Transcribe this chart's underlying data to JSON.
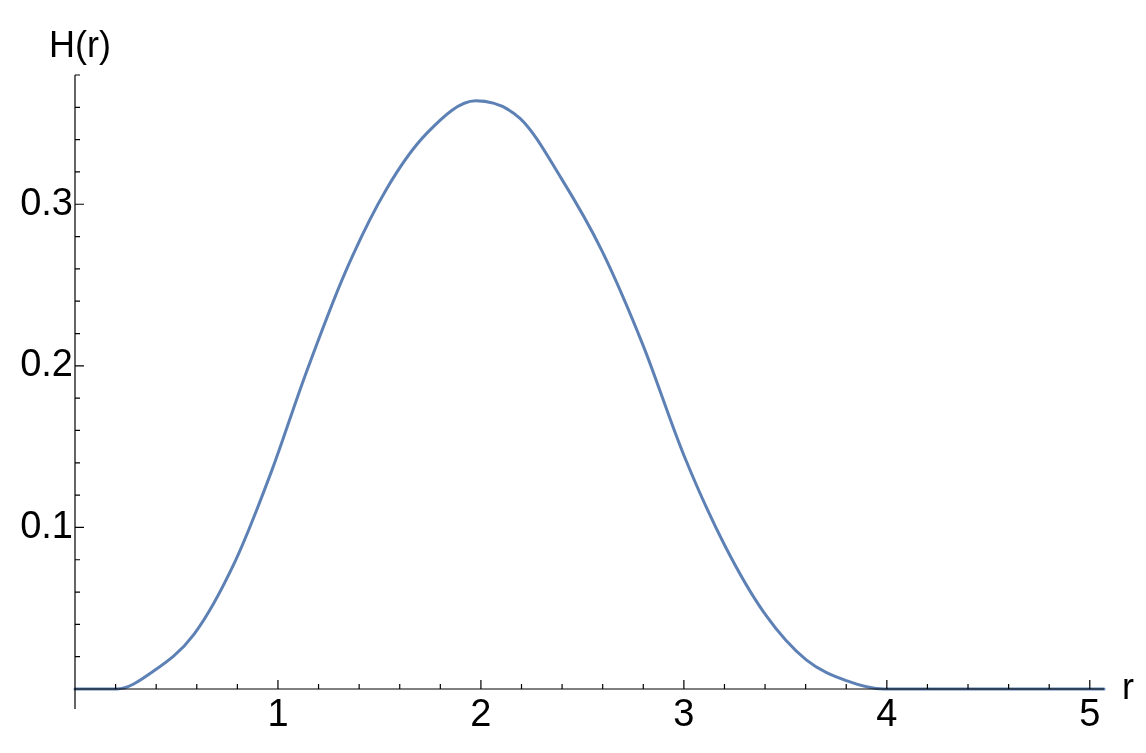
{
  "chart_data": {
    "type": "line",
    "xlabel": "r",
    "ylabel": "H(r)",
    "x": [
      0,
      0.1,
      0.205,
      0.386,
      0.587,
      0.789,
      0.969,
      1.131,
      1.332,
      1.533,
      1.734,
      1.975,
      2.194,
      2.396,
      2.597,
      2.798,
      2.999,
      3.201,
      3.402,
      3.603,
      3.804,
      3.985,
      4.5,
      5.07
    ],
    "series": [
      {
        "color": "#5e81b5",
        "values": [
          0,
          0,
          0,
          0.011,
          0.034,
          0.079,
          0.135,
          0.193,
          0.258,
          0.309,
          0.344,
          0.364,
          0.353,
          0.316,
          0.271,
          0.213,
          0.145,
          0.089,
          0.046,
          0.018,
          0.005,
          0,
          0,
          0
        ]
      }
    ],
    "xlim": [
      0,
      5.07
    ],
    "ylim": [
      0,
      0.38
    ],
    "xticks": [
      {
        "value": 0.2,
        "label": null
      },
      {
        "value": 0.4,
        "label": null
      },
      {
        "value": 0.6,
        "label": null
      },
      {
        "value": 0.8,
        "label": null
      },
      1,
      {
        "value": 1.2,
        "label": null
      },
      {
        "value": 1.4,
        "label": null
      },
      {
        "value": 1.6,
        "label": null
      },
      {
        "value": 1.8,
        "label": null
      },
      2,
      {
        "value": 2.2,
        "label": null
      },
      {
        "value": 2.4,
        "label": null
      },
      {
        "value": 2.6,
        "label": null
      },
      {
        "value": 2.8,
        "label": null
      },
      3,
      {
        "value": 3.2,
        "label": null
      },
      {
        "value": 3.4,
        "label": null
      },
      {
        "value": 3.6,
        "label": null
      },
      {
        "value": 3.8,
        "label": null
      },
      4,
      {
        "value": 4.2,
        "label": null
      },
      {
        "value": 4.4,
        "label": null
      },
      {
        "value": 4.6,
        "label": null
      },
      {
        "value": 4.8,
        "label": null
      },
      5
    ],
    "yticks": [
      {
        "value": 0.02,
        "label": null
      },
      {
        "value": 0.04,
        "label": null
      },
      {
        "value": 0.06,
        "label": null
      },
      {
        "value": 0.08,
        "label": null
      },
      0.1,
      {
        "value": 0.12,
        "label": null
      },
      {
        "value": 0.14,
        "label": null
      },
      {
        "value": 0.16,
        "label": null
      },
      {
        "value": 0.18,
        "label": null
      },
      0.2,
      {
        "value": 0.22,
        "label": null
      },
      {
        "value": 0.24,
        "label": null
      },
      {
        "value": 0.26,
        "label": null
      },
      {
        "value": 0.28,
        "label": null
      },
      0.3,
      {
        "value": 0.32,
        "label": null
      },
      {
        "value": 0.34,
        "label": null
      },
      {
        "value": 0.36,
        "label": null
      },
      {
        "value": 0.38,
        "label": null
      }
    ],
    "marker": "none",
    "line_style": "solid",
    "grid": false,
    "legend": false
  }
}
